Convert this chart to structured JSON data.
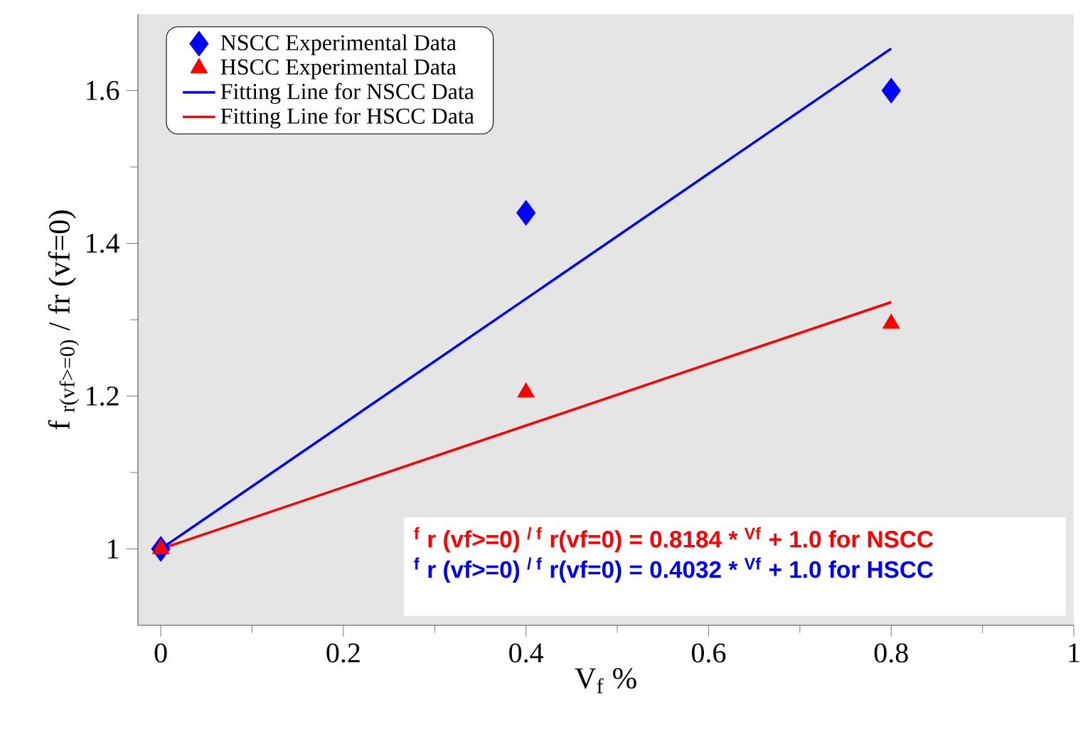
{
  "chart_data": {
    "type": "scatter",
    "xlabel": "V$_{f}$ %",
    "ylabel": "f $_{r(vf>=0)}$ / fr (vf=0)",
    "xlim": [
      -0.025,
      1.0
    ],
    "ylim": [
      0.9,
      1.7
    ],
    "xticks": [
      0,
      0.2,
      0.4,
      0.6,
      0.8,
      1
    ],
    "yticks": [
      1,
      1.2,
      1.4,
      1.6
    ],
    "legend": "top left",
    "series": [
      {
        "name": "NSCC Experimental Data",
        "marker": "diamond",
        "color": "#0000ff",
        "x": [
          0,
          0.4,
          0.8
        ],
        "values": [
          1.0,
          1.44,
          1.6
        ]
      },
      {
        "name": "HSCC Experimental Data",
        "marker": "triangle",
        "color": "#ff0000",
        "x": [
          0,
          0.4,
          0.8
        ],
        "values": [
          1.0,
          1.205,
          1.295
        ]
      },
      {
        "name": "Fitting Line for NSCC Data",
        "type": "line",
        "marker": "none",
        "color": "#0000ff",
        "x": [
          0,
          0.8
        ],
        "values": [
          1.0,
          1.655
        ]
      },
      {
        "name": "Fitting Line for HSCC Data",
        "type": "line",
        "marker": "none",
        "color": "#ff0000",
        "x": [
          0,
          0.8
        ],
        "values": [
          1.0,
          1.323
        ]
      }
    ],
    "annotations": [
      "$^{f}$ r (vf>=0) $^{/ f}$ r(vf=0) = 0.8184 * $^{Vf}$ + 1.0   for NSCC",
      "$^{f}$ r (vf>=0) $^{/ f}$ r(vf=0) = 0.4032 * $^{Vf}$ + 1.0   for HSCC"
    ]
  }
}
